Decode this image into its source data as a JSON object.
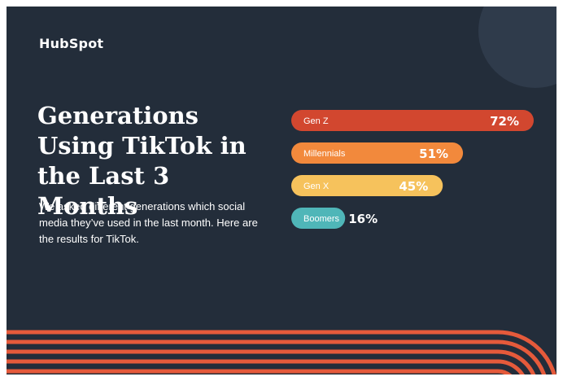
{
  "brand": {
    "logo_text": "HubSpot",
    "background": "#232d3a",
    "text_color": "#ffffff",
    "stripe_color": "#e55a3b"
  },
  "headline": "Generations Using TikTok in the Last 3 Months",
  "subtext": "We asked different generations which social media they’ve used in the last month. Here are the results for TikTok.",
  "chart_data": {
    "type": "bar",
    "orientation": "horizontal",
    "title": "Generations Using TikTok in the Last 3 Months",
    "categories": [
      "Gen Z",
      "Millennials",
      "Gen X",
      "Boomers"
    ],
    "values": [
      72,
      51,
      45,
      16
    ],
    "value_labels": [
      "72%",
      "51%",
      "45%",
      "16%"
    ],
    "colors": [
      "#d2472f",
      "#f2893c",
      "#f6c25c",
      "#4fb6b8"
    ],
    "xlim": [
      0,
      72
    ],
    "grid": false,
    "legend": "none"
  }
}
